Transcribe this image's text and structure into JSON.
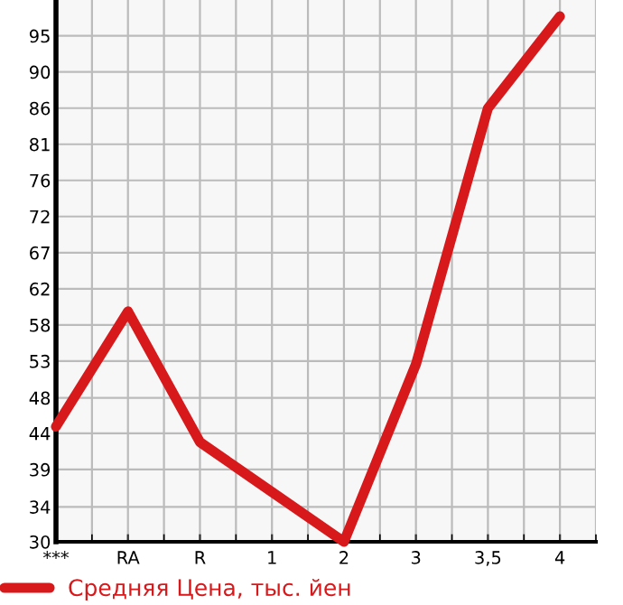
{
  "chart_data": {
    "type": "line",
    "categories": [
      "***",
      "RA",
      "R",
      "1",
      "2",
      "3",
      "3,5",
      "4"
    ],
    "series": [
      {
        "name": "Средняя Цена, тыс. йен",
        "color": "#d7191c",
        "values": [
          44.8,
          59.6,
          42.8,
          36.4,
          30,
          52.8,
          85.7,
          97.5
        ]
      }
    ],
    "ylim": [
      30,
      99.6
    ],
    "yticks": [
      30,
      {
        "value": 34.49,
        "label": "34"
      },
      {
        "value": 39.29,
        "label": "39"
      },
      {
        "value": 43.93,
        "label": "44"
      },
      {
        "value": 48.49,
        "label": "48"
      },
      {
        "value": 53.21,
        "label": "53"
      },
      {
        "value": 57.86,
        "label": "58"
      },
      {
        "value": 62.5,
        "label": "62"
      },
      {
        "value": 67.14,
        "label": "67"
      },
      {
        "value": 71.79,
        "label": "72"
      },
      {
        "value": 76.43,
        "label": "76"
      },
      {
        "value": 81.07,
        "label": "81"
      },
      {
        "value": 85.71,
        "label": "86"
      },
      {
        "value": 90.36,
        "label": "90"
      },
      95
    ],
    "grid": true,
    "legend": "bottom",
    "marker": "none",
    "line_style": "solid"
  }
}
